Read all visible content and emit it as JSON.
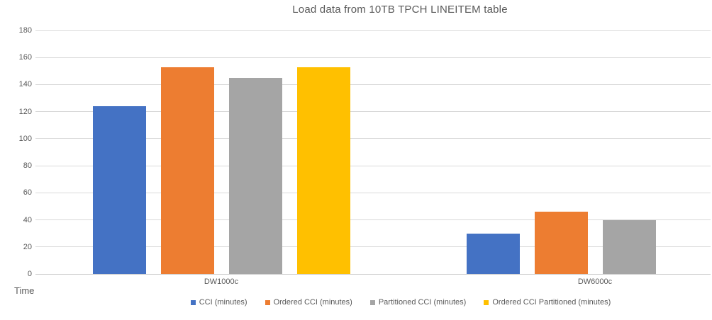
{
  "chart_data": {
    "type": "bar",
    "title": "Load data from 10TB TPCH LINEITEM table",
    "categories": [
      "DW1000c",
      "DW6000c"
    ],
    "series": [
      {
        "name": "CCI (minutes)",
        "color": "#4472C4",
        "values": [
          124,
          30
        ]
      },
      {
        "name": "Ordered CCI (minutes)",
        "color": "#ED7D31",
        "values": [
          153,
          46
        ]
      },
      {
        "name": "Partitioned CCI (minutes)",
        "color": "#A5A5A5",
        "values": [
          145,
          40
        ]
      },
      {
        "name": "Ordered CCI Partitioned (minutes)",
        "color": "#FFC000",
        "values": [
          153,
          0
        ]
      }
    ],
    "xlabel": "",
    "ylabel": "Time",
    "ylim": [
      0,
      180
    ],
    "ytick_step": 20,
    "yticks": [
      0,
      20,
      40,
      60,
      80,
      100,
      120,
      140,
      160,
      180
    ],
    "grid": true,
    "legend_position": "bottom",
    "colors": {
      "gridline": "#D9D9D9",
      "axis_text": "#595959",
      "title_text": "#595959",
      "background": "#FFFFFF"
    }
  }
}
